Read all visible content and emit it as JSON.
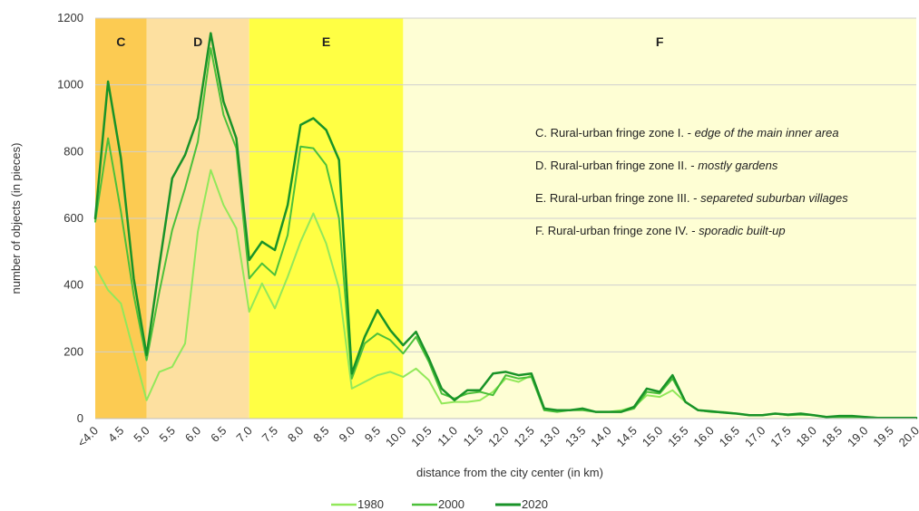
{
  "chart_data": {
    "type": "line",
    "xlabel": "distance from the city center (in km)",
    "ylabel": "number of objects (in pieces)",
    "ylim": [
      0,
      1200
    ],
    "yticks": [
      0,
      200,
      400,
      600,
      800,
      1000,
      1200
    ],
    "xlim": [
      4.0,
      20.0
    ],
    "x_tick_labels": [
      "<4.0",
      "4.5",
      "5.0",
      "5.5",
      "6.0",
      "6.5",
      "7.0",
      "7.5",
      "8.0",
      "8.5",
      "9.0",
      "9.5",
      "10.0",
      "10.5",
      "11.0",
      "11.5",
      "12.0",
      "12.5",
      "13.0",
      "13.5",
      "14.0",
      "14.5",
      "15.0",
      "15.5",
      "16.0",
      "16.5",
      "17.0",
      "17.5",
      "18.0",
      "18.5",
      "19.0",
      "19.5",
      "20.0"
    ],
    "grid": "horizontal",
    "legend_position": "bottom",
    "zones": [
      {
        "label": "C",
        "from": 4.0,
        "to": 5.0,
        "color": "#fccb52"
      },
      {
        "label": "D",
        "from": 5.0,
        "to": 7.0,
        "color": "#fde0a0"
      },
      {
        "label": "E",
        "from": 7.0,
        "to": 10.0,
        "color": "#ffff44"
      },
      {
        "label": "F",
        "from": 10.0,
        "to": 20.0,
        "color": "#fefed4"
      }
    ],
    "annotations": [
      {
        "prefix": "C. Rural-urban fringe zone I. - ",
        "italic": "edge of the main inner area"
      },
      {
        "prefix": "D. Rural-urban fringe zone II. - ",
        "italic": "mostly gardens"
      },
      {
        "prefix": "E. Rural-urban fringe zone III. - ",
        "italic": "separeted suburban villages"
      },
      {
        "prefix": "F. Rural-urban fringe zone IV. - ",
        "italic": "sporadic built-up"
      }
    ],
    "x": [
      4.0,
      4.25,
      4.5,
      4.75,
      5.0,
      5.25,
      5.5,
      5.75,
      6.0,
      6.25,
      6.5,
      6.75,
      7.0,
      7.25,
      7.5,
      7.75,
      8.0,
      8.25,
      8.5,
      8.75,
      9.0,
      9.25,
      9.5,
      9.75,
      10.0,
      10.25,
      10.5,
      10.75,
      11.0,
      11.25,
      11.5,
      11.75,
      12.0,
      12.25,
      12.5,
      12.75,
      13.0,
      13.25,
      13.5,
      13.75,
      14.0,
      14.25,
      14.5,
      14.75,
      15.0,
      15.25,
      15.5,
      15.75,
      16.0,
      16.25,
      16.5,
      16.75,
      17.0,
      17.25,
      17.5,
      17.75,
      18.0,
      18.25,
      18.5,
      18.75,
      19.0,
      19.25,
      19.5,
      19.75,
      20.0
    ],
    "series": [
      {
        "name": "1980",
        "color": "#92e85a",
        "width": 2,
        "values": [
          455,
          385,
          345,
          200,
          55,
          140,
          155,
          225,
          560,
          745,
          640,
          570,
          320,
          405,
          330,
          425,
          530,
          615,
          525,
          390,
          90,
          110,
          130,
          140,
          125,
          150,
          115,
          45,
          50,
          50,
          55,
          80,
          120,
          110,
          130,
          25,
          25,
          25,
          30,
          20,
          20,
          25,
          35,
          70,
          65,
          85,
          50,
          25,
          20,
          20,
          15,
          10,
          10,
          15,
          10,
          15,
          10,
          5,
          5,
          5,
          5,
          2,
          2,
          2,
          2
        ]
      },
      {
        "name": "2000",
        "color": "#4cc03a",
        "width": 2,
        "values": [
          590,
          840,
          620,
          370,
          175,
          380,
          565,
          690,
          830,
          1110,
          910,
          810,
          420,
          465,
          430,
          550,
          815,
          810,
          760,
          600,
          120,
          225,
          255,
          235,
          195,
          245,
          170,
          75,
          60,
          75,
          80,
          70,
          130,
          120,
          125,
          25,
          20,
          25,
          25,
          20,
          20,
          20,
          30,
          80,
          75,
          120,
          50,
          25,
          20,
          18,
          15,
          10,
          10,
          15,
          10,
          12,
          10,
          5,
          5,
          5,
          5,
          2,
          2,
          2,
          2
        ]
      },
      {
        "name": "2020",
        "color": "#199328",
        "width": 2.5,
        "values": [
          600,
          1010,
          780,
          420,
          190,
          460,
          720,
          790,
          900,
          1155,
          950,
          840,
          475,
          530,
          505,
          640,
          880,
          900,
          865,
          775,
          135,
          245,
          325,
          265,
          220,
          260,
          180,
          90,
          55,
          85,
          85,
          135,
          140,
          130,
          135,
          30,
          25,
          25,
          30,
          20,
          20,
          20,
          35,
          90,
          80,
          130,
          50,
          25,
          22,
          18,
          15,
          10,
          10,
          15,
          12,
          15,
          10,
          5,
          8,
          8,
          5,
          2,
          2,
          2,
          2
        ]
      }
    ]
  }
}
